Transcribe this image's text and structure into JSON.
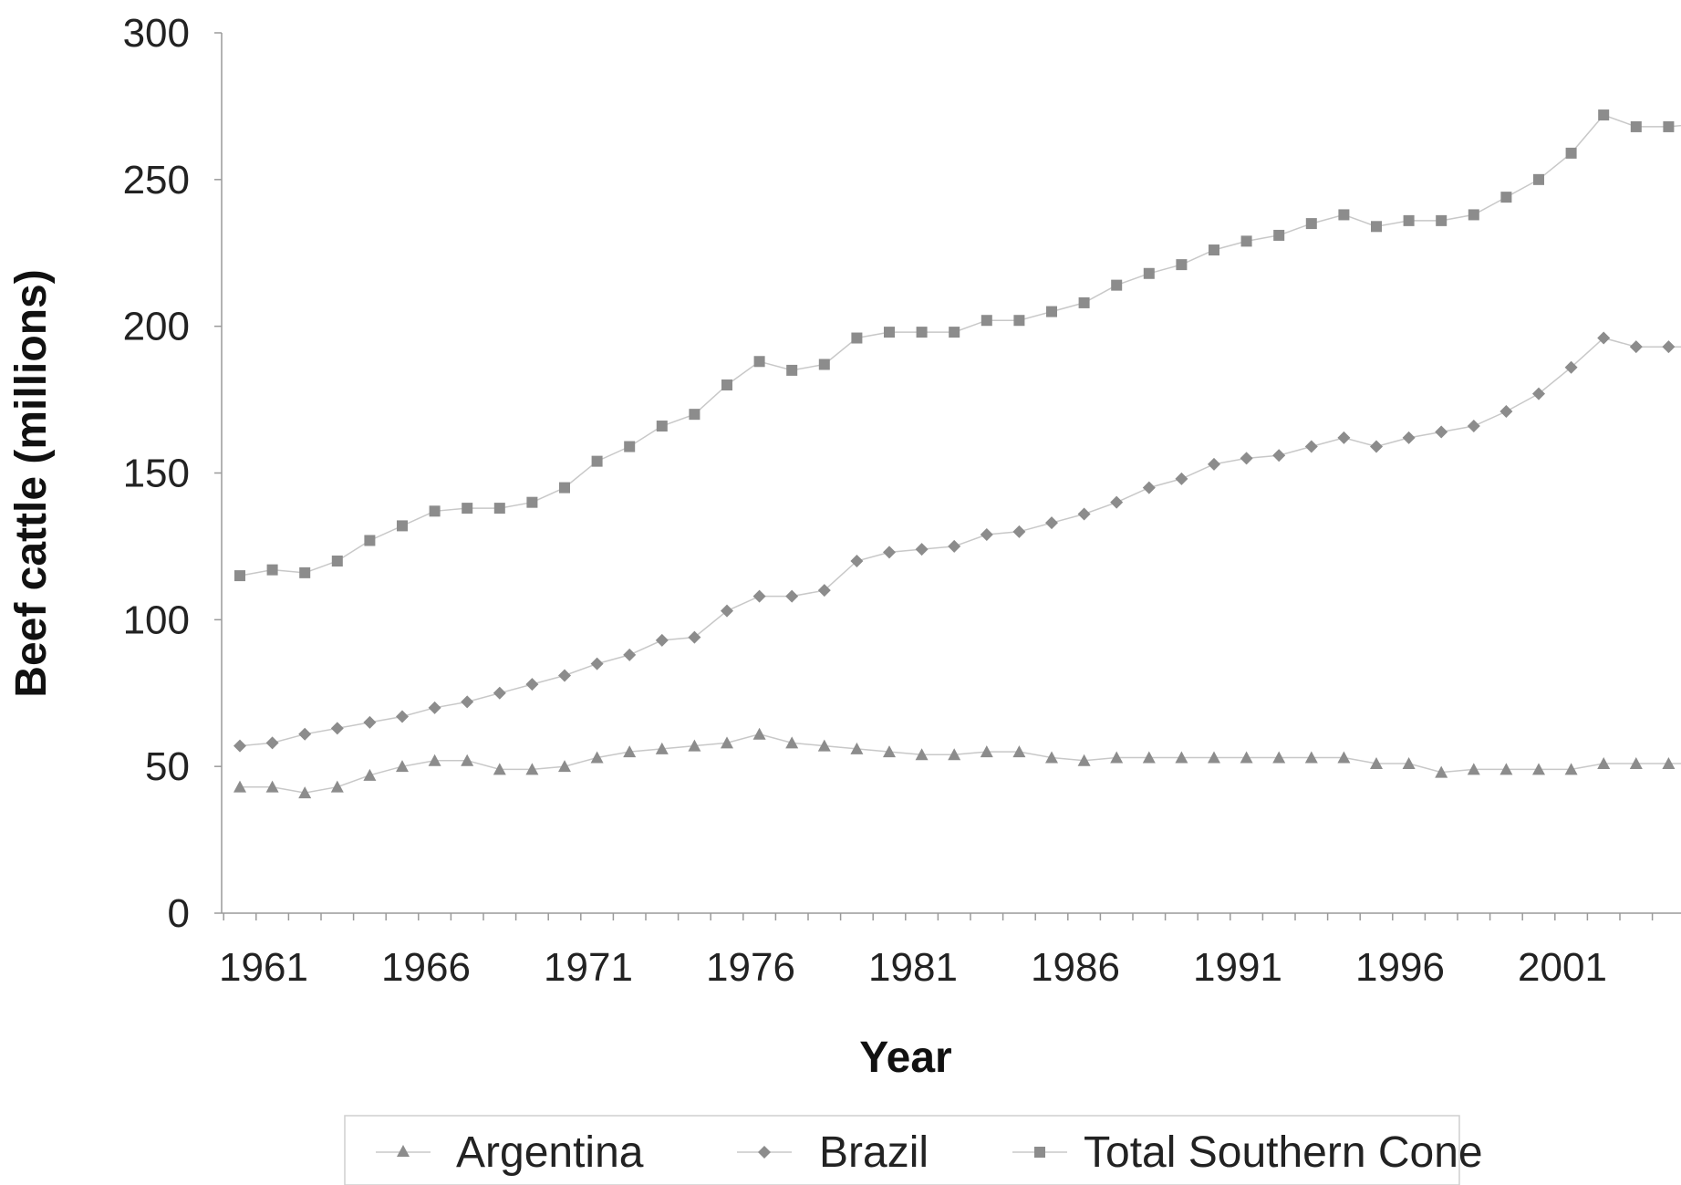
{
  "chart_data": {
    "type": "line",
    "xlabel": "Year",
    "ylabel": "Beef cattle (millions)",
    "ylim": [
      0,
      300
    ],
    "yticks": [
      "0",
      "50",
      "100",
      "150",
      "200",
      "250",
      "300"
    ],
    "xticks": [
      "1961",
      "1966",
      "1971",
      "1976",
      "1981",
      "1986",
      "1991",
      "1996",
      "2001"
    ],
    "x": [
      1961,
      1962,
      1963,
      1964,
      1965,
      1966,
      1967,
      1968,
      1969,
      1970,
      1971,
      1972,
      1973,
      1974,
      1975,
      1976,
      1977,
      1978,
      1979,
      1980,
      1981,
      1982,
      1983,
      1984,
      1985,
      1986,
      1987,
      1988,
      1989,
      1990,
      1991,
      1992,
      1993,
      1994,
      1995,
      1996,
      1997,
      1998,
      1999,
      2000,
      2001,
      2002,
      2003,
      2004,
      2005,
      2006
    ],
    "grid": false,
    "legend_position": "bottom",
    "colors": {
      "marker": "#8c8c8c",
      "line": "#c8c8c8",
      "axis": "#9a9a9a"
    },
    "series": [
      {
        "name": "Argentina",
        "marker": "triangle",
        "values": [
          43,
          43,
          41,
          43,
          47,
          50,
          52,
          52,
          49,
          49,
          50,
          53,
          55,
          56,
          57,
          58,
          61,
          58,
          57,
          56,
          55,
          54,
          54,
          55,
          55,
          53,
          52,
          53,
          53,
          53,
          53,
          53,
          53,
          53,
          53,
          51,
          51,
          48,
          49,
          49,
          49,
          49,
          51,
          51,
          51,
          51
        ]
      },
      {
        "name": "Brazil",
        "marker": "diamond",
        "values": [
          57,
          58,
          61,
          63,
          65,
          67,
          70,
          72,
          75,
          78,
          81,
          85,
          88,
          93,
          94,
          103,
          108,
          108,
          110,
          120,
          123,
          124,
          125,
          129,
          130,
          133,
          136,
          140,
          145,
          148,
          153,
          155,
          156,
          159,
          162,
          159,
          162,
          164,
          166,
          171,
          177,
          186,
          196,
          193,
          193,
          193
        ]
      },
      {
        "name": "Total Southern Cone",
        "marker": "square",
        "values": [
          115,
          117,
          116,
          120,
          127,
          132,
          137,
          138,
          138,
          140,
          145,
          154,
          159,
          166,
          170,
          180,
          188,
          185,
          187,
          196,
          198,
          198,
          198,
          202,
          202,
          205,
          208,
          214,
          218,
          221,
          226,
          229,
          231,
          235,
          238,
          234,
          236,
          236,
          238,
          244,
          250,
          259,
          272,
          268,
          268,
          269
        ]
      }
    ]
  }
}
